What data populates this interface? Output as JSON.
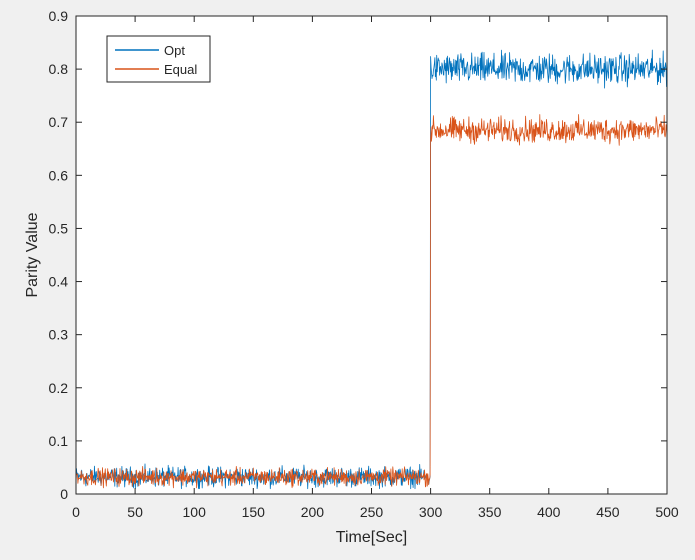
{
  "chart_data": {
    "type": "line",
    "title": "",
    "xlabel": "Time[Sec]",
    "ylabel": "Parity Value",
    "xlim": [
      0,
      500
    ],
    "ylim": [
      0,
      0.9
    ],
    "xticks": [
      0,
      50,
      100,
      150,
      200,
      250,
      300,
      350,
      400,
      450,
      500
    ],
    "yticks": [
      0,
      0.1,
      0.2,
      0.3,
      0.4,
      0.5,
      0.6,
      0.7,
      0.8,
      0.9
    ],
    "xtick_labels": [
      "0",
      "50",
      "100",
      "150",
      "200",
      "250",
      "300",
      "350",
      "400",
      "450",
      "500"
    ],
    "ytick_labels": [
      "0",
      "0.1",
      "0.2",
      "0.3",
      "0.4",
      "0.5",
      "0.6",
      "0.7",
      "0.8",
      "0.9"
    ],
    "grid": false,
    "legend_position": "top-left",
    "step_time": 300,
    "series": [
      {
        "name": "Opt",
        "color": "#0072BD",
        "segments": [
          {
            "x_start": 0,
            "x_end": 300,
            "mean": 0.032,
            "min": 0.01,
            "max": 0.065
          },
          {
            "x_start": 300,
            "x_end": 500,
            "mean": 0.8,
            "min": 0.76,
            "max": 0.845
          }
        ]
      },
      {
        "name": "Equal",
        "color": "#D95319",
        "segments": [
          {
            "x_start": 0,
            "x_end": 300,
            "mean": 0.032,
            "min": 0.01,
            "max": 0.058
          },
          {
            "x_start": 300,
            "x_end": 500,
            "mean": 0.685,
            "min": 0.65,
            "max": 0.72
          }
        ]
      }
    ]
  }
}
